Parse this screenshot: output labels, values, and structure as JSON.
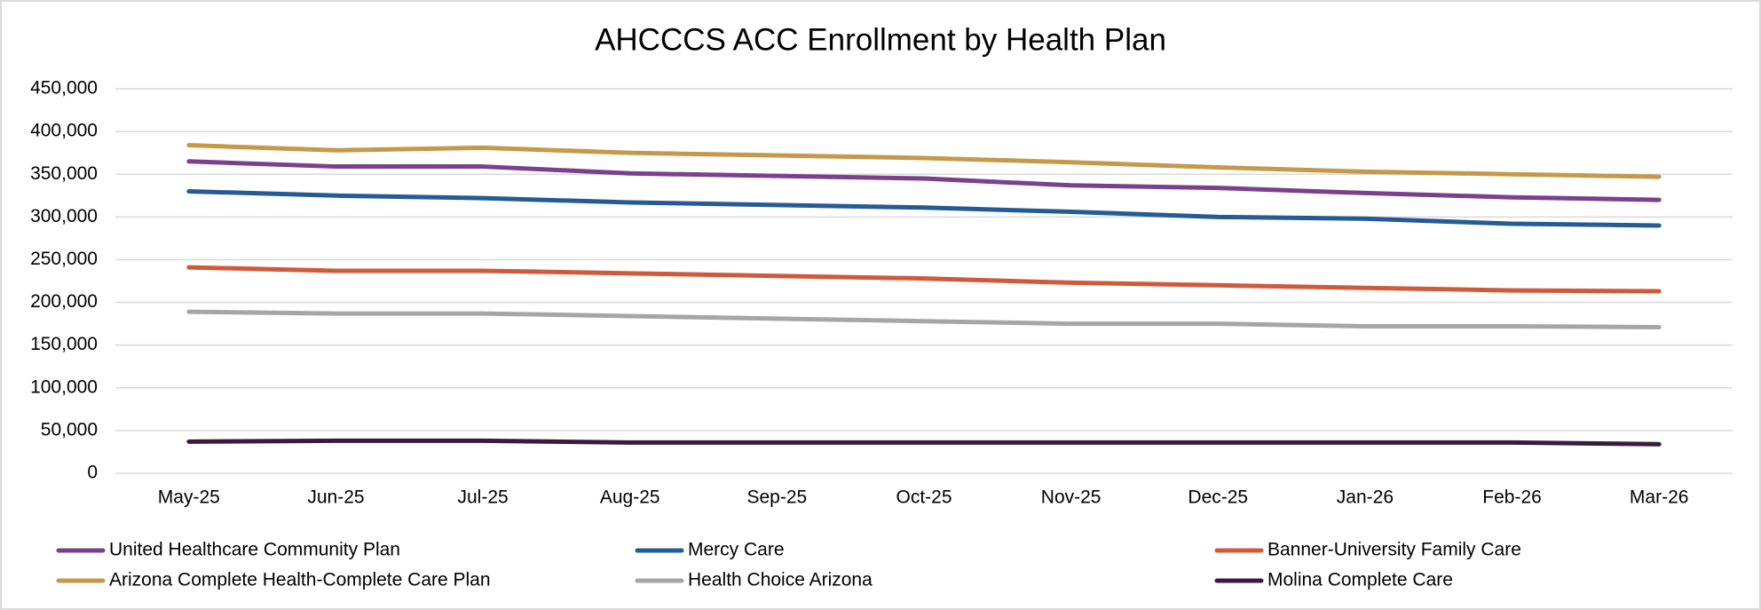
{
  "chart_data": {
    "type": "line",
    "title": "AHCCCS ACC Enrollment by Health Plan",
    "categories": [
      "May-25",
      "Jun-25",
      "Jul-25",
      "Aug-25",
      "Sep-25",
      "Oct-25",
      "Nov-25",
      "Dec-25",
      "Jan-26",
      "Feb-26",
      "Mar-26"
    ],
    "series": [
      {
        "name": "United Healthcare Community Plan",
        "color": "#7b3f8c",
        "values": [
          365000,
          359000,
          359000,
          351000,
          348000,
          345000,
          337000,
          334000,
          328000,
          323000,
          320000
        ]
      },
      {
        "name": "Mercy Care",
        "color": "#245b94",
        "values": [
          330000,
          325000,
          322000,
          317000,
          314000,
          311000,
          306000,
          300000,
          298000,
          292000,
          290000
        ]
      },
      {
        "name": "Banner-University Family Care",
        "color": "#d0593a",
        "values": [
          241000,
          237000,
          237000,
          234000,
          231000,
          228000,
          223000,
          220000,
          217000,
          214000,
          213000
        ]
      },
      {
        "name": "Arizona Complete Health-Complete Care Plan",
        "color": "#c5994a",
        "values": [
          384000,
          378000,
          381000,
          375000,
          372000,
          369000,
          364000,
          358000,
          353000,
          350000,
          347000
        ]
      },
      {
        "name": "Health Choice Arizona",
        "color": "#a6a6a6",
        "values": [
          189000,
          187000,
          187000,
          184000,
          181000,
          178000,
          175000,
          175000,
          172000,
          172000,
          171000
        ]
      },
      {
        "name": "Molina Complete Care",
        "color": "#3b1a3f",
        "values": [
          37000,
          38000,
          38000,
          36000,
          36000,
          36000,
          36000,
          36000,
          36000,
          36000,
          34000
        ]
      }
    ],
    "ylim": [
      0,
      450000
    ],
    "yticks": [
      0,
      {
        "value": 50000,
        "label": "50,000"
      },
      {
        "value": 100000,
        "label": "100,000"
      },
      {
        "value": 150000,
        "label": "150,000"
      },
      {
        "value": 200000,
        "label": "200,000"
      },
      {
        "value": 250000,
        "label": "250,000"
      },
      {
        "value": 300000,
        "label": "300,000"
      },
      {
        "value": 350000,
        "label": "350,000"
      },
      {
        "value": 400000,
        "label": "400,000"
      },
      {
        "value": 450000,
        "label": "450,000"
      }
    ],
    "grid": true,
    "legend": "bottom"
  }
}
